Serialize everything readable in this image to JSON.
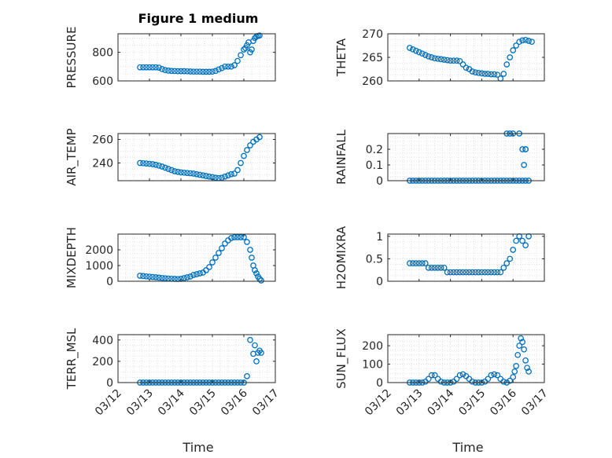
{
  "figure": {
    "title": "Figure 1 medium",
    "xlabel": "Time",
    "marker_color": "#0072BD"
  },
  "chart_data": [
    {
      "type": "scatter",
      "id": "pressure",
      "ylabel": "PRESSURE",
      "ylim": [
        600,
        930
      ],
      "yticks": [
        600,
        800
      ],
      "x": [
        12.7,
        12.8,
        12.9,
        13.0,
        13.1,
        13.2,
        13.3,
        13.4,
        13.5,
        13.6,
        13.7,
        13.8,
        13.9,
        14.0,
        14.1,
        14.2,
        14.3,
        14.4,
        14.5,
        14.6,
        14.7,
        14.8,
        14.9,
        15.0,
        15.1,
        15.2,
        15.3,
        15.4,
        15.5,
        15.6,
        15.7,
        15.8,
        15.9,
        16.0,
        16.05,
        16.1,
        16.15,
        16.2,
        16.25,
        16.3,
        16.35,
        16.4,
        16.45,
        16.5
      ],
      "y": [
        695,
        695,
        695,
        695,
        695,
        695,
        693,
        683,
        676,
        672,
        670,
        669,
        668,
        668,
        668,
        667,
        666,
        665,
        665,
        665,
        664,
        664,
        664,
        665,
        670,
        680,
        690,
        700,
        700,
        700,
        710,
        740,
        780,
        820,
        830,
        850,
        870,
        800,
        820,
        880,
        900,
        910,
        915,
        918
      ]
    },
    {
      "type": "scatter",
      "id": "theta",
      "ylabel": "THETA",
      "ylim": [
        260,
        270
      ],
      "yticks": [
        260,
        265,
        270
      ],
      "x": [
        12.7,
        12.8,
        12.9,
        13.0,
        13.1,
        13.2,
        13.3,
        13.4,
        13.5,
        13.6,
        13.7,
        13.8,
        13.9,
        14.0,
        14.1,
        14.2,
        14.3,
        14.4,
        14.5,
        14.6,
        14.7,
        14.8,
        14.9,
        15.0,
        15.1,
        15.2,
        15.3,
        15.4,
        15.5,
        15.6,
        15.7,
        15.8,
        15.9,
        16.0,
        16.1,
        16.2,
        16.3,
        16.4,
        16.5,
        16.6
      ],
      "y": [
        267,
        266.7,
        266.4,
        266.1,
        265.8,
        265.5,
        265.2,
        265.0,
        264.8,
        264.7,
        264.6,
        264.5,
        264.4,
        264.3,
        264.3,
        264.3,
        264.2,
        263.5,
        262.8,
        262.5,
        262.0,
        261.8,
        261.7,
        261.6,
        261.5,
        261.5,
        261.4,
        261.4,
        261.3,
        260.5,
        261.5,
        263.5,
        265.0,
        266.5,
        267.5,
        268.3,
        268.6,
        268.7,
        268.5,
        268.3
      ]
    },
    {
      "type": "scatter",
      "id": "air_temp",
      "ylabel": "AIR_TEMP",
      "ylim": [
        225,
        265
      ],
      "yticks": [
        240,
        260
      ],
      "x": [
        12.7,
        12.8,
        12.9,
        13.0,
        13.1,
        13.2,
        13.3,
        13.4,
        13.5,
        13.6,
        13.7,
        13.8,
        13.9,
        14.0,
        14.1,
        14.2,
        14.3,
        14.4,
        14.5,
        14.6,
        14.7,
        14.8,
        14.9,
        15.0,
        15.1,
        15.2,
        15.3,
        15.4,
        15.5,
        15.6,
        15.7,
        15.8,
        15.9,
        16.0,
        16.1,
        16.2,
        16.3,
        16.4,
        16.5
      ],
      "y": [
        240,
        239.8,
        239.6,
        239.3,
        239,
        238.5,
        237.8,
        237,
        236,
        235,
        234,
        233,
        232.5,
        232,
        231.8,
        231.5,
        231.3,
        231,
        230.5,
        230,
        229.5,
        229,
        228.5,
        228,
        227.5,
        227.2,
        227.5,
        228.5,
        229.5,
        230.5,
        231,
        234,
        240,
        246,
        251,
        255,
        258,
        260,
        262
      ]
    },
    {
      "type": "scatter",
      "id": "rainfall",
      "ylabel": "RAINFALL",
      "ylim": [
        0,
        0.3
      ],
      "yticks": [
        0,
        0.1,
        0.2
      ],
      "x": [
        12.7,
        12.8,
        12.9,
        13.0,
        13.1,
        13.2,
        13.3,
        13.4,
        13.5,
        13.6,
        13.7,
        13.8,
        13.9,
        14.0,
        14.1,
        14.2,
        14.3,
        14.4,
        14.5,
        14.6,
        14.7,
        14.8,
        14.9,
        15.0,
        15.1,
        15.2,
        15.3,
        15.4,
        15.5,
        15.6,
        15.7,
        15.8,
        15.9,
        16.0,
        16.1,
        16.2,
        16.3,
        16.4,
        16.5,
        15.8,
        15.9,
        16.0,
        16.2,
        16.3,
        16.4,
        16.35,
        16.4
      ],
      "y": [
        0,
        0,
        0,
        0,
        0,
        0,
        0,
        0,
        0,
        0,
        0,
        0,
        0,
        0,
        0,
        0,
        0,
        0,
        0,
        0,
        0,
        0,
        0,
        0,
        0,
        0,
        0,
        0,
        0,
        0,
        0,
        0,
        0,
        0,
        0,
        0,
        0,
        0,
        0,
        0.3,
        0.3,
        0.3,
        0.3,
        0.2,
        0.2,
        0.1,
        0.2
      ]
    },
    {
      "type": "scatter",
      "id": "mixdepth",
      "ylabel": "MIXDEPTH",
      "ylim": [
        0,
        3000
      ],
      "yticks": [
        0,
        1000,
        2000
      ],
      "x": [
        12.7,
        12.8,
        12.9,
        13.0,
        13.1,
        13.2,
        13.3,
        13.4,
        13.5,
        13.6,
        13.7,
        13.8,
        13.9,
        14.0,
        14.1,
        14.2,
        14.3,
        14.4,
        14.5,
        14.6,
        14.7,
        14.8,
        14.9,
        15.0,
        15.1,
        15.2,
        15.3,
        15.4,
        15.5,
        15.6,
        15.7,
        15.8,
        15.9,
        16.0,
        16.1,
        16.2,
        16.25,
        16.3,
        16.35,
        16.4,
        16.45,
        16.5,
        16.55
      ],
      "y": [
        350,
        330,
        310,
        290,
        270,
        250,
        230,
        210,
        190,
        170,
        160,
        150,
        140,
        150,
        200,
        250,
        300,
        400,
        450,
        500,
        550,
        700,
        900,
        1200,
        1500,
        1800,
        2100,
        2400,
        2600,
        2750,
        2800,
        2800,
        2800,
        2800,
        2500,
        2000,
        1500,
        1000,
        700,
        500,
        300,
        150,
        50
      ]
    },
    {
      "type": "scatter",
      "id": "h2omixra",
      "ylabel": "H2OMIXRA",
      "ylim": [
        0,
        1.05
      ],
      "yticks": [
        0,
        0.5,
        1
      ],
      "x": [
        12.7,
        12.8,
        12.9,
        13.0,
        13.1,
        13.2,
        13.3,
        13.4,
        13.5,
        13.6,
        13.7,
        13.8,
        13.9,
        14.0,
        14.1,
        14.2,
        14.3,
        14.4,
        14.5,
        14.6,
        14.7,
        14.8,
        14.9,
        15.0,
        15.1,
        15.2,
        15.3,
        15.4,
        15.5,
        15.6,
        15.7,
        15.8,
        15.9,
        16.0,
        16.1,
        16.2,
        16.3,
        16.4,
        16.5
      ],
      "y": [
        0.4,
        0.4,
        0.4,
        0.4,
        0.4,
        0.4,
        0.3,
        0.3,
        0.3,
        0.3,
        0.3,
        0.3,
        0.2,
        0.2,
        0.2,
        0.2,
        0.2,
        0.2,
        0.2,
        0.2,
        0.2,
        0.2,
        0.2,
        0.2,
        0.2,
        0.2,
        0.2,
        0.2,
        0.2,
        0.2,
        0.3,
        0.4,
        0.5,
        0.7,
        0.9,
        1.0,
        0.9,
        0.8,
        1.0
      ]
    },
    {
      "type": "scatter",
      "id": "terr_msl",
      "ylabel": "TERR_MSL",
      "ylim": [
        0,
        450
      ],
      "yticks": [
        0,
        200,
        400
      ],
      "x": [
        12.7,
        12.8,
        12.9,
        13.0,
        13.1,
        13.2,
        13.3,
        13.4,
        13.5,
        13.6,
        13.7,
        13.8,
        13.9,
        14.0,
        14.1,
        14.2,
        14.3,
        14.4,
        14.5,
        14.6,
        14.7,
        14.8,
        14.9,
        15.0,
        15.1,
        15.2,
        15.3,
        15.4,
        15.5,
        15.6,
        15.7,
        15.8,
        15.9,
        16.0,
        16.1,
        16.2,
        16.3,
        16.35,
        16.4,
        16.45,
        16.5,
        16.55
      ],
      "y": [
        0,
        0,
        0,
        0,
        0,
        0,
        0,
        0,
        0,
        0,
        0,
        0,
        0,
        0,
        0,
        0,
        0,
        0,
        0,
        0,
        0,
        0,
        0,
        0,
        0,
        0,
        0,
        0,
        0,
        0,
        0,
        0,
        0,
        0,
        60,
        400,
        270,
        350,
        200,
        280,
        300,
        280
      ]
    },
    {
      "type": "scatter",
      "id": "sun_flux",
      "ylabel": "SUN_FLUX",
      "ylim": [
        0,
        260
      ],
      "yticks": [
        0,
        100,
        200
      ],
      "x": [
        12.7,
        12.8,
        12.9,
        13.0,
        13.1,
        13.2,
        13.3,
        13.4,
        13.5,
        13.6,
        13.7,
        13.8,
        13.9,
        14.0,
        14.1,
        14.2,
        14.3,
        14.4,
        14.5,
        14.6,
        14.7,
        14.8,
        14.9,
        15.0,
        15.1,
        15.2,
        15.3,
        15.4,
        15.5,
        15.6,
        15.7,
        15.8,
        15.9,
        16.0,
        16.05,
        16.1,
        16.15,
        16.2,
        16.25,
        16.3,
        16.35,
        16.4,
        16.45,
        16.5
      ],
      "y": [
        0,
        0,
        0,
        0,
        0,
        5,
        20,
        40,
        40,
        20,
        5,
        0,
        0,
        0,
        5,
        20,
        40,
        45,
        35,
        20,
        5,
        0,
        0,
        0,
        5,
        20,
        40,
        45,
        40,
        20,
        5,
        0,
        10,
        30,
        60,
        90,
        150,
        200,
        240,
        220,
        180,
        120,
        80,
        60
      ]
    }
  ],
  "xaxis": {
    "range": [
      12,
      17
    ],
    "ticks": [
      12,
      13,
      14,
      15,
      16,
      17
    ],
    "tick_labels": [
      "03/12",
      "03/13",
      "03/14",
      "03/15",
      "03/16",
      "03/17"
    ]
  }
}
